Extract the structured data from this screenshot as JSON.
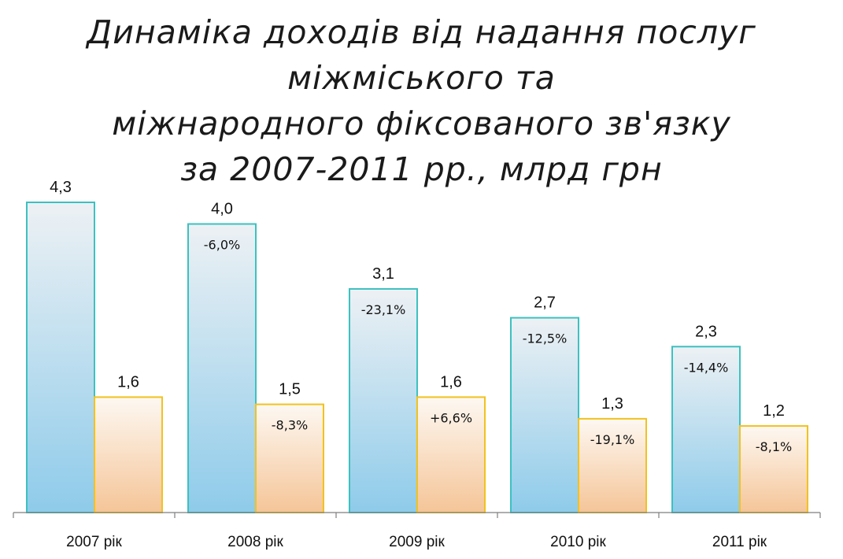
{
  "chart_data": {
    "type": "bar",
    "title_lines": [
      "Динаміка доходів від надання послуг міжміського та",
      "міжнародного фіксованого зв'язку",
      "за 2007-2011 рр., млрд грн"
    ],
    "categories": [
      "2007 рік",
      "2008 рік",
      "2009 рік",
      "2010 рік",
      "2011 рік"
    ],
    "series": [
      {
        "values": [
          4.3,
          4.0,
          3.1,
          2.7,
          2.3
        ],
        "value_labels": [
          "4,3",
          "4,0",
          "3,1",
          "2,7",
          "2,3"
        ],
        "change_labels": [
          "",
          "-6,0%",
          "-23,1%",
          "-12,5%",
          "-14,4%"
        ],
        "stroke": "#3cc1c0",
        "fill_top": "#edf1f4",
        "fill_bottom": "#8ecbea"
      },
      {
        "values": [
          1.6,
          1.5,
          1.6,
          1.3,
          1.2
        ],
        "value_labels": [
          "1,6",
          "1,5",
          "1,6",
          "1,3",
          "1,2"
        ],
        "change_labels": [
          "",
          "-8,3%",
          "+6,6%",
          "-19,1%",
          "-8,1%"
        ],
        "stroke": "#f2c21e",
        "fill_top": "#fdf8f2",
        "fill_bottom": "#f5c598"
      }
    ],
    "ylim": [
      0,
      4.3
    ],
    "grid": false,
    "legend": "none"
  }
}
